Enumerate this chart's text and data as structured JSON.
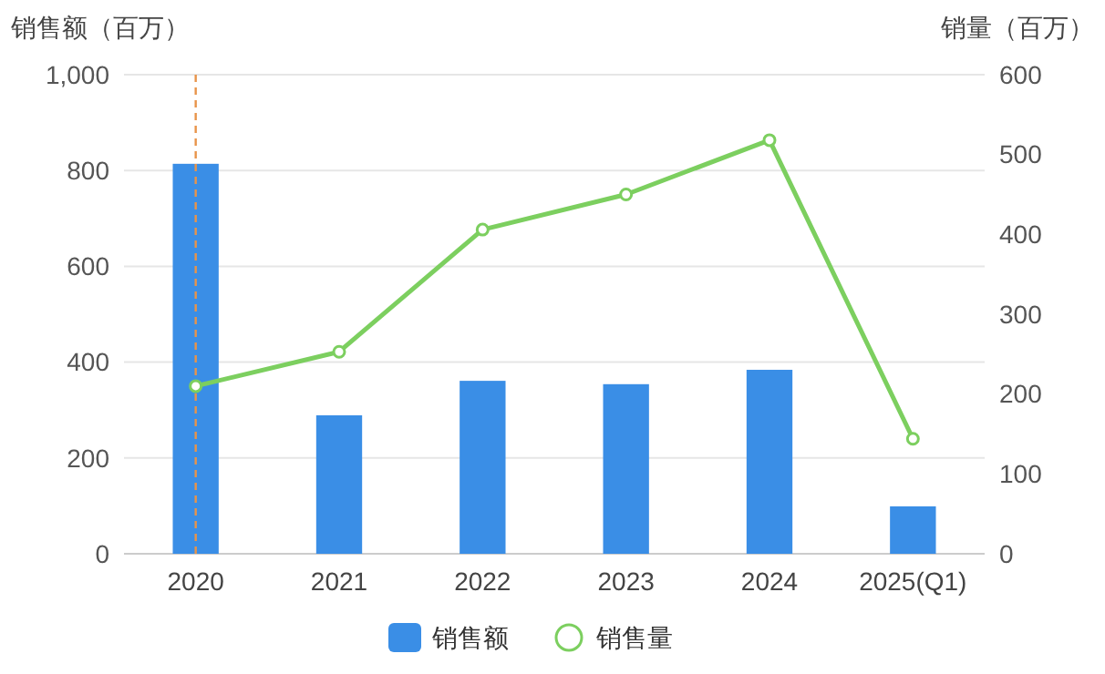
{
  "chart_data": {
    "type": "bar",
    "categories": [
      "2020",
      "2021",
      "2022",
      "2023",
      "2024",
      "2025(Q1)"
    ],
    "ylabel": "销售额（百万）",
    "y2label": "销量（百万）",
    "series": [
      {
        "name": "销售额",
        "color": "#3a8ee6",
        "values": [
          814,
          289,
          361,
          354,
          384,
          99
        ]
      },
      {
        "name": "销售量",
        "type": "line",
        "axis": "y2",
        "color": "#7ccf5f",
        "marker": "circle",
        "values": [
          210,
          253,
          406,
          450,
          518,
          144
        ]
      }
    ],
    "ylim": [
      0,
      1000
    ],
    "yticks": [
      0,
      200,
      400,
      600,
      800,
      {
        "value": 1000,
        "label": "1,000"
      }
    ],
    "y2lim": [
      0,
      600
    ],
    "y2ticks": [
      0,
      100,
      200,
      300,
      400,
      500,
      600
    ],
    "grid": "y",
    "legend": "bottom",
    "ref_lines": [
      {
        "axis": "x",
        "value": "2020",
        "color": "#e8944a",
        "line_style": "dashed"
      }
    ]
  }
}
